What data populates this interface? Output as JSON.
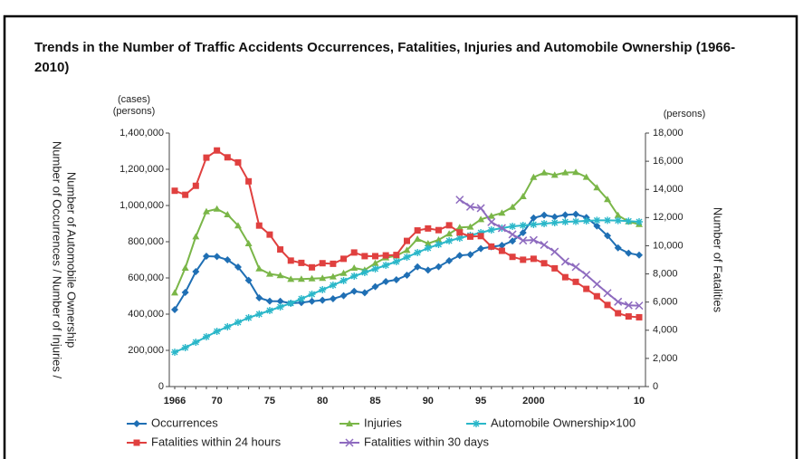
{
  "chart_data": {
    "type": "line",
    "title": "Trends in the Number of Traffic Accidents Occurrences, Fatalities, Injuries and Automobile Ownership (1966-2010)",
    "y_units": [
      "(cases)",
      "(persons)"
    ],
    "y2_unit": "(persons)",
    "ylabel": [
      "Number of Occurrences / Number of Injuries /",
      "Number of Automobile Ownership"
    ],
    "y2label": "Number of Fatalities",
    "categories": [
      "1966",
      null,
      null,
      null,
      "70",
      null,
      null,
      null,
      null,
      "75",
      null,
      null,
      null,
      null,
      "80",
      null,
      null,
      null,
      null,
      "85",
      null,
      null,
      null,
      null,
      "90",
      null,
      null,
      null,
      null,
      "95",
      null,
      null,
      null,
      null,
      "2000",
      null,
      null,
      null,
      null,
      null,
      null,
      null,
      null,
      null,
      "10"
    ],
    "ylim": [
      0,
      1400000
    ],
    "yticks": [
      0,
      {
        "value": 200000,
        "label": "200,000"
      },
      {
        "value": 400000,
        "label": "400,000"
      },
      {
        "value": 600000,
        "label": "600,000"
      },
      {
        "value": 800000,
        "label": "800,000"
      },
      {
        "value": 1000000,
        "label": "1,000,000"
      },
      {
        "value": 1200000,
        "label": "1,200,000"
      },
      {
        "value": 1400000,
        "label": "1,400,000"
      }
    ],
    "y2lim": [
      0,
      18000
    ],
    "y2ticks": [
      0,
      {
        "value": 2000,
        "label": "2,000"
      },
      {
        "value": 4000,
        "label": "4,000"
      },
      {
        "value": 6000,
        "label": "6,000"
      },
      {
        "value": 8000,
        "label": "8,000"
      },
      {
        "value": 10000,
        "label": "10,000"
      },
      {
        "value": 12000,
        "label": "12,000"
      },
      {
        "value": 14000,
        "label": "14,000"
      },
      {
        "value": 16000,
        "label": "16,000"
      },
      {
        "value": 18000,
        "label": "18,000"
      }
    ],
    "grid": false,
    "legend": "bottom",
    "series": [
      {
        "name": "Occurrences",
        "color": "#1f6fb4",
        "marker": "diamond",
        "values": [
          425000,
          520000,
          635000,
          720000,
          718000,
          700000,
          660000,
          587000,
          490000,
          472000,
          471000,
          460000,
          464000,
          471000,
          477000,
          485000,
          502000,
          526000,
          518000,
          552000,
          580000,
          590000,
          615000,
          661000,
          643000,
          662000,
          695000,
          724000,
          729000,
          762000,
          772000,
          780000,
          804000,
          850000,
          931000,
          947000,
          937000,
          948000,
          952000,
          934000,
          887000,
          833000,
          766000,
          737000,
          726000
        ]
      },
      {
        "name": "Injuries",
        "color": "#7ab648",
        "marker": "triangle",
        "values": [
          518000,
          655000,
          828000,
          967000,
          981000,
          950000,
          889000,
          790000,
          651000,
          622000,
          614000,
          593000,
          594000,
          596000,
          599000,
          607000,
          626000,
          655000,
          644000,
          681000,
          712000,
          722000,
          753000,
          815000,
          790000,
          810000,
          844000,
          879000,
          882000,
          923000,
          942000,
          959000,
          991000,
          1050000,
          1156000,
          1181000,
          1168000,
          1182000,
          1184000,
          1157000,
          1099000,
          1034000,
          946000,
          911000,
          896000
        ]
      },
      {
        "name": "Automobile Ownership×100",
        "color": "#2ab7c9",
        "marker": "star",
        "values": [
          190000,
          215000,
          245000,
          275000,
          305000,
          330000,
          355000,
          380000,
          400000,
          420000,
          440000,
          460000,
          485000,
          510000,
          535000,
          560000,
          585000,
          610000,
          630000,
          650000,
          670000,
          690000,
          715000,
          740000,
          765000,
          785000,
          805000,
          820000,
          835000,
          850000,
          865000,
          875000,
          885000,
          890000,
          895000,
          900000,
          905000,
          910000,
          912000,
          915000,
          918000,
          918000,
          917000,
          914000,
          910000
        ]
      },
      {
        "name": "Fatalities within 24 hours",
        "color": "#e0403f",
        "marker": "square",
        "axis": "y2",
        "values": [
          13904,
          13618,
          14256,
          16257,
          16765,
          16278,
          15918,
          14574,
          11432,
          10792,
          9734,
          8945,
          8783,
          8466,
          8760,
          8719,
          9073,
          9520,
          9262,
          9261,
          9317,
          9347,
          10344,
          11086,
          11227,
          11109,
          11452,
          10942,
          10649,
          10684,
          9942,
          9640,
          9211,
          9006,
          9073,
          8757,
          8396,
          7768,
          7436,
          6937,
          6415,
          5796,
          5209,
          4979,
          4922
        ]
      },
      {
        "name": "Fatalities within 30 days",
        "color": "#8e6bbf",
        "marker": "x",
        "axis": "y2",
        "values": [
          null,
          null,
          null,
          null,
          null,
          null,
          null,
          null,
          null,
          null,
          null,
          null,
          null,
          null,
          null,
          null,
          null,
          null,
          null,
          null,
          null,
          null,
          null,
          null,
          null,
          null,
          null,
          13269,
          12768,
          12670,
          11674,
          11254,
          10805,
          10372,
          10403,
          10060,
          9575,
          8877,
          8492,
          7931,
          7272,
          6639,
          6023,
          5772,
          5745
        ]
      }
    ]
  }
}
